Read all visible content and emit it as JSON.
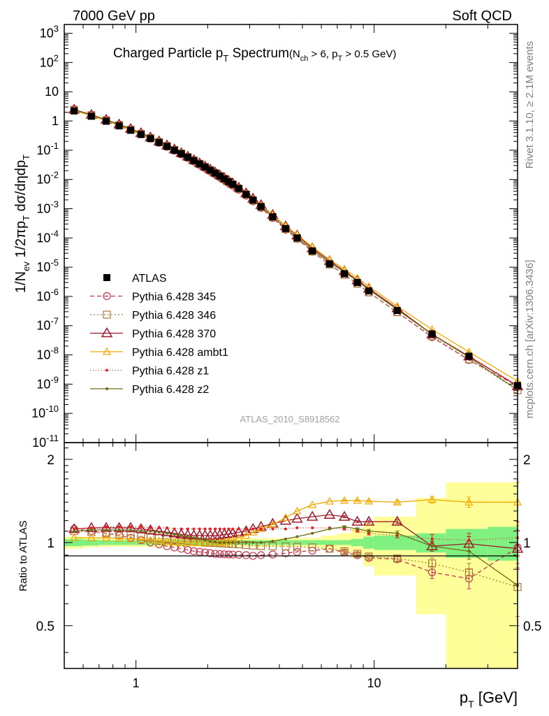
{
  "header": {
    "left": "7000 GeV pp",
    "right": "Soft QCD"
  },
  "title": {
    "main": "Charged Particle p",
    "main_sub": "T",
    "main_tail": " Spectrum",
    "cond": "(N",
    "cond_sub1": "ch",
    "cond_mid": " > 6, p",
    "cond_sub2": "T",
    "cond_tail": " > 0.5 GeV)"
  },
  "y_label": {
    "a": "1/N",
    "a_sub": "ev",
    "b": " 1/2πp",
    "b_sub": "T",
    "c": " dσ/dηdp",
    "c_sub": "T"
  },
  "ratio_label": "Ratio to ATLAS",
  "x_label": {
    "a": "p",
    "a_sub": "T",
    "b": "  [GeV]"
  },
  "analysis_id": "ATLAS_2010_S8918562",
  "side_right_top": "Rivet 3.1.10, ≥ 2.1M events",
  "side_right_bottom": "mcplots.cern.ch [arXiv:1306.3436]",
  "colors": {
    "atlas": "#000000",
    "p345": "#c0364e",
    "p346": "#a87a3a",
    "p370": "#9e1b2e",
    "ambt1": "#f0a800",
    "z1": "#e02020",
    "z2": "#6e6e18",
    "band_inner": "#80f080",
    "band_outer": "#ffff99"
  },
  "chart_data": {
    "type": "line",
    "x_scale": "log",
    "y_scale_main": "log",
    "xlim": [
      0.5,
      40
    ],
    "ylim_main": [
      1e-11,
      2000
    ],
    "ylim_ratio": [
      0.35,
      2.3
    ],
    "x_ticks": [
      "1",
      "10"
    ],
    "y_ticks_main": [
      "10^-11",
      "10^-10",
      "10^-9",
      "10^-8",
      "10^-7",
      "10^-6",
      "10^-5",
      "10^-4",
      "10^-3",
      "10^-2",
      "10^-1",
      "1",
      "10",
      "10^2",
      "10^3"
    ],
    "y_ticks_ratio": [
      "0.5",
      "1",
      "2"
    ],
    "legend": [
      "ATLAS",
      "Pythia 6.428 345",
      "Pythia 6.428 346",
      "Pythia 6.428 370",
      "Pythia 6.428 ambt1",
      "Pythia 6.428 z1",
      "Pythia 6.428 z2"
    ],
    "legend_position": "middle-left",
    "x": [
      0.55,
      0.65,
      0.75,
      0.85,
      0.95,
      1.05,
      1.15,
      1.25,
      1.35,
      1.45,
      1.55,
      1.65,
      1.75,
      1.85,
      1.95,
      2.05,
      2.15,
      2.25,
      2.35,
      2.45,
      2.55,
      2.7,
      2.9,
      3.1,
      3.35,
      3.75,
      4.25,
      4.75,
      5.5,
      6.5,
      7.5,
      8.5,
      9.5,
      12.5,
      17.5,
      25,
      40
    ],
    "atlas": [
      2.2,
      1.45,
      0.98,
      0.68,
      0.48,
      0.345,
      0.25,
      0.183,
      0.135,
      0.1,
      0.0755,
      0.0575,
      0.044,
      0.034,
      0.0266,
      0.0208,
      0.0165,
      0.0131,
      0.0105,
      0.0084,
      0.0068,
      0.0049,
      0.0031,
      0.00198,
      0.00118,
      0.00053,
      0.00021,
      0.0001,
      3.6e-05,
      1.3e-05,
      6e-06,
      3e-06,
      1.55e-06,
      3.3e-07,
      5.2e-08,
      9e-09,
      9e-10
    ],
    "ratio_band_edges": [
      0.5,
      0.6,
      0.7,
      0.8,
      0.9,
      1.0,
      1.1,
      1.2,
      1.3,
      1.4,
      1.5,
      1.6,
      1.7,
      1.8,
      1.9,
      2.0,
      2.1,
      2.2,
      2.3,
      2.4,
      2.5,
      2.6,
      2.8,
      3.0,
      3.2,
      3.5,
      4.0,
      4.5,
      5.0,
      6.0,
      7.0,
      8.0,
      9.0,
      10.0,
      15.0,
      20.0,
      30.0,
      50.0
    ],
    "ratio_band_inner": [
      0.03,
      0.025,
      0.02,
      0.02,
      0.02,
      0.02,
      0.02,
      0.02,
      0.02,
      0.02,
      0.02,
      0.02,
      0.02,
      0.02,
      0.02,
      0.02,
      0.02,
      0.02,
      0.02,
      0.02,
      0.02,
      0.02,
      0.02,
      0.02,
      0.02,
      0.02,
      0.02,
      0.02,
      0.02,
      0.02,
      0.02,
      0.03,
      0.05,
      0.06,
      0.08,
      0.12,
      0.14
    ],
    "ratio_band_outer": [
      0.05,
      0.04,
      0.035,
      0.035,
      0.035,
      0.035,
      0.035,
      0.035,
      0.035,
      0.035,
      0.035,
      0.035,
      0.035,
      0.035,
      0.035,
      0.035,
      0.035,
      0.035,
      0.035,
      0.035,
      0.035,
      0.035,
      0.035,
      0.035,
      0.035,
      0.035,
      0.035,
      0.035,
      0.04,
      0.06,
      0.08,
      0.12,
      0.18,
      0.24,
      0.45,
      0.65,
      0.65
    ],
    "series": [
      {
        "name": "Pythia 6.428 345",
        "key": "p345",
        "marker": "circle",
        "dash": "6,4",
        "ratio": [
          1.12,
          1.1,
          1.08,
          1.06,
          1.04,
          1.02,
          1.0,
          0.985,
          0.97,
          0.96,
          0.95,
          0.94,
          0.93,
          0.925,
          0.92,
          0.915,
          0.91,
          0.908,
          0.906,
          0.905,
          0.904,
          0.903,
          0.9,
          0.895,
          0.9,
          0.905,
          0.915,
          0.925,
          0.935,
          0.95,
          0.92,
          0.9,
          0.88,
          0.87,
          0.78,
          0.74,
          0.96
        ],
        "err": [
          0,
          0,
          0,
          0,
          0,
          0,
          0,
          0,
          0,
          0,
          0,
          0,
          0,
          0,
          0,
          0,
          0,
          0,
          0,
          0,
          0,
          0,
          0,
          0,
          0,
          0,
          0,
          0,
          0,
          0,
          0.01,
          0.01,
          0.015,
          0.02,
          0.04,
          0.06,
          0.15
        ]
      },
      {
        "name": "Pythia 6.428 346",
        "key": "p346",
        "marker": "square",
        "dash": "2,3",
        "ratio": [
          1.1,
          1.09,
          1.08,
          1.07,
          1.06,
          1.05,
          1.04,
          1.035,
          1.03,
          1.025,
          1.02,
          1.015,
          1.01,
          1.005,
          1.0,
          0.998,
          0.996,
          0.994,
          0.992,
          0.99,
          0.988,
          0.985,
          0.98,
          0.975,
          0.972,
          0.97,
          0.968,
          0.965,
          0.96,
          0.95,
          0.93,
          0.91,
          0.89,
          0.875,
          0.84,
          0.78,
          0.69
        ],
        "err": [
          0,
          0,
          0,
          0,
          0,
          0,
          0,
          0,
          0,
          0,
          0,
          0,
          0,
          0,
          0,
          0,
          0,
          0,
          0,
          0,
          0,
          0,
          0,
          0,
          0,
          0,
          0,
          0,
          0,
          0,
          0.01,
          0.01,
          0.015,
          0.02,
          0.04,
          0.06,
          0.15
        ]
      },
      {
        "name": "Pythia 6.428 370",
        "key": "p370",
        "marker": "triangle",
        "dash": "",
        "ratio": [
          1.12,
          1.13,
          1.13,
          1.13,
          1.13,
          1.12,
          1.11,
          1.1,
          1.09,
          1.08,
          1.07,
          1.065,
          1.06,
          1.06,
          1.06,
          1.06,
          1.06,
          1.065,
          1.07,
          1.075,
          1.08,
          1.09,
          1.1,
          1.12,
          1.14,
          1.17,
          1.2,
          1.22,
          1.24,
          1.26,
          1.24,
          1.19,
          1.19,
          1.19,
          0.97,
          0.99,
          0.95
        ],
        "err": [
          0,
          0,
          0,
          0,
          0,
          0,
          0,
          0,
          0,
          0,
          0,
          0,
          0,
          0,
          0,
          0,
          0,
          0,
          0,
          0,
          0,
          0,
          0,
          0,
          0,
          0,
          0,
          0,
          0,
          0,
          0.01,
          0.01,
          0.015,
          0.02,
          0.04,
          0.06,
          0.15
        ]
      },
      {
        "name": "Pythia 6.428 ambt1",
        "key": "ambt1",
        "marker": "triangle-small",
        "dash": "",
        "ratio": [
          1.04,
          1.04,
          1.04,
          1.035,
          1.03,
          1.025,
          1.02,
          1.015,
          1.01,
          1.005,
          1.0,
          1.0,
          1.0,
          1.0,
          1.0,
          1.0,
          1.0,
          1.0,
          1.005,
          1.01,
          1.02,
          1.04,
          1.06,
          1.09,
          1.12,
          1.16,
          1.23,
          1.3,
          1.37,
          1.41,
          1.42,
          1.42,
          1.41,
          1.4,
          1.43,
          1.4,
          1.4
        ],
        "err": [
          0,
          0,
          0,
          0,
          0,
          0,
          0,
          0,
          0,
          0,
          0,
          0,
          0,
          0,
          0,
          0,
          0,
          0,
          0,
          0,
          0,
          0,
          0,
          0,
          0,
          0,
          0,
          0,
          0,
          0,
          0.01,
          0.01,
          0.015,
          0.02,
          0.04,
          0.06,
          0.25
        ]
      },
      {
        "name": "Pythia 6.428 z1",
        "key": "z1",
        "marker": "dot",
        "dash": "1,3",
        "ratio": [
          1.12,
          1.13,
          1.14,
          1.14,
          1.14,
          1.14,
          1.13,
          1.13,
          1.13,
          1.12,
          1.12,
          1.12,
          1.12,
          1.12,
          1.12,
          1.12,
          1.12,
          1.12,
          1.12,
          1.12,
          1.12,
          1.12,
          1.12,
          1.12,
          1.12,
          1.12,
          1.12,
          1.13,
          1.13,
          1.13,
          1.12,
          1.1,
          1.08,
          1.06,
          1.03,
          1.02,
          1.04
        ],
        "err": [
          0,
          0,
          0,
          0,
          0,
          0,
          0,
          0,
          0,
          0,
          0,
          0,
          0,
          0,
          0,
          0,
          0,
          0,
          0,
          0,
          0,
          0,
          0,
          0,
          0,
          0,
          0,
          0,
          0,
          0,
          0.01,
          0.01,
          0.015,
          0.02,
          0.04,
          0.06,
          0.15
        ]
      },
      {
        "name": "Pythia 6.428 z2",
        "key": "z2",
        "marker": "dot",
        "dash": "",
        "ratio": [
          1.1,
          1.11,
          1.11,
          1.11,
          1.11,
          1.1,
          1.1,
          1.09,
          1.08,
          1.07,
          1.06,
          1.05,
          1.04,
          1.03,
          1.02,
          1.01,
          1.005,
          1.0,
          1.0,
          1.0,
          1.0,
          1.0,
          1.0,
          1.0,
          1.0,
          1.01,
          1.03,
          1.05,
          1.08,
          1.12,
          1.14,
          1.12,
          1.1,
          1.08,
          0.97,
          0.93,
          0.7
        ],
        "err": [
          0,
          0,
          0,
          0,
          0,
          0,
          0,
          0,
          0,
          0,
          0,
          0,
          0,
          0,
          0,
          0,
          0,
          0,
          0,
          0,
          0,
          0,
          0,
          0,
          0,
          0,
          0,
          0,
          0,
          0,
          0.01,
          0.01,
          0.015,
          0.02,
          0.04,
          0.06,
          0.2
        ]
      }
    ]
  }
}
